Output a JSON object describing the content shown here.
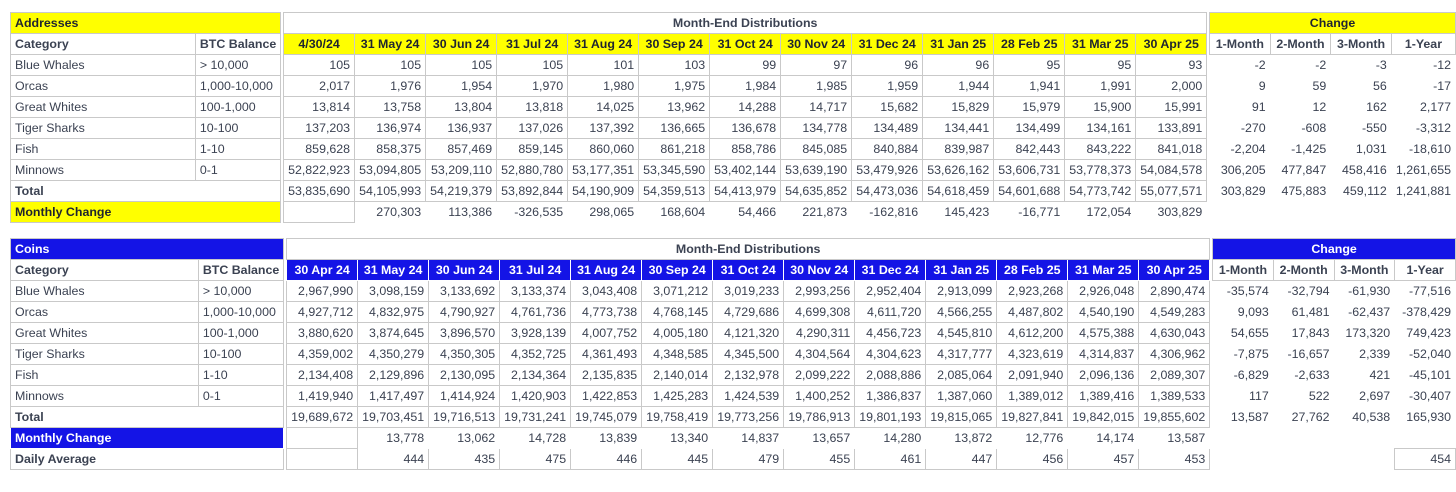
{
  "colors": {
    "yellow_accent": "#FFFF00",
    "blue_accent": "#1414E6",
    "positive_green": "#2BA62E",
    "negative_red": "#CE2B24",
    "header_gray": "#D9D9D9",
    "text_dark": "#3B4252"
  },
  "chart_data": [
    {
      "type": "table",
      "title": "Addresses",
      "accent": "#FFFF00",
      "banner": "Month-End Distributions",
      "change_title": "Change",
      "category_header": "Category",
      "balance_header": "BTC Balance",
      "months": [
        "4/30/24",
        "31 May 24",
        "30 Jun 24",
        "31 Jul 24",
        "31 Aug 24",
        "30 Sep 24",
        "31 Oct 24",
        "30 Nov 24",
        "31 Dec 24",
        "31 Jan 25",
        "28 Feb 25",
        "31 Mar 25",
        "30 Apr 25"
      ],
      "change_headers": [
        "1-Month",
        "2-Month",
        "3-Month",
        "1-Year"
      ],
      "rows": [
        {
          "category": "Blue Whales",
          "balance": "> 10,000",
          "values": [
            "105",
            "105",
            "105",
            "105",
            "101",
            "103",
            "99",
            "97",
            "96",
            "96",
            "95",
            "95",
            "93"
          ],
          "changes": [
            "-2",
            "-2",
            "-3",
            "-12"
          ]
        },
        {
          "category": "Orcas",
          "balance": "1,000-10,000",
          "values": [
            "2,017",
            "1,976",
            "1,954",
            "1,970",
            "1,980",
            "1,975",
            "1,984",
            "1,985",
            "1,959",
            "1,944",
            "1,941",
            "1,991",
            "2,000"
          ],
          "changes": [
            "9",
            "59",
            "56",
            "-17"
          ]
        },
        {
          "category": "Great Whites",
          "balance": "100-1,000",
          "values": [
            "13,814",
            "13,758",
            "13,804",
            "13,818",
            "14,025",
            "13,962",
            "14,288",
            "14,717",
            "15,682",
            "15,829",
            "15,979",
            "15,900",
            "15,991"
          ],
          "changes": [
            "91",
            "12",
            "162",
            "2,177"
          ]
        },
        {
          "category": "Tiger Sharks",
          "balance": "10-100",
          "values": [
            "137,203",
            "136,974",
            "136,937",
            "137,026",
            "137,392",
            "136,665",
            "136,678",
            "134,778",
            "134,489",
            "134,441",
            "134,499",
            "134,161",
            "133,891"
          ],
          "changes": [
            "-270",
            "-608",
            "-550",
            "-3,312"
          ]
        },
        {
          "category": "Fish",
          "balance": "1-10",
          "values": [
            "859,628",
            "858,375",
            "857,469",
            "859,145",
            "860,060",
            "861,218",
            "858,786",
            "845,085",
            "840,884",
            "839,987",
            "842,443",
            "843,222",
            "841,018"
          ],
          "changes": [
            "-2,204",
            "-1,425",
            "1,031",
            "-18,610"
          ]
        },
        {
          "category": "Minnows",
          "balance": "0-1",
          "values": [
            "52,822,923",
            "53,094,805",
            "53,209,110",
            "52,880,780",
            "53,177,351",
            "53,345,590",
            "53,402,144",
            "53,639,190",
            "53,479,926",
            "53,626,162",
            "53,606,731",
            "53,778,373",
            "54,084,578"
          ],
          "changes": [
            "306,205",
            "477,847",
            "458,416",
            "1,261,655"
          ]
        }
      ],
      "total": {
        "label": "Total",
        "values": [
          "53,835,690",
          "54,105,993",
          "54,219,379",
          "53,892,844",
          "54,190,909",
          "54,359,513",
          "54,413,979",
          "54,635,852",
          "54,473,036",
          "54,618,459",
          "54,601,688",
          "54,773,742",
          "55,077,571"
        ],
        "changes": [
          "303,829",
          "475,883",
          "459,112",
          "1,241,881"
        ]
      },
      "total_change_style": "sign",
      "monthly_change": {
        "label": "Monthly Change",
        "values": [
          "",
          "270,303",
          "113,386",
          "-326,535",
          "298,065",
          "168,604",
          "54,466",
          "221,873",
          "-162,816",
          "145,423",
          "-16,771",
          "172,054",
          "303,829"
        ]
      },
      "monthly_change_style": "sign"
    },
    {
      "type": "table",
      "title": "Coins",
      "accent": "#1414E6",
      "banner": "Month-End Distributions",
      "change_title": "Change",
      "category_header": "Category",
      "balance_header": "BTC Balance",
      "months": [
        "30 Apr 24",
        "31 May 24",
        "30 Jun 24",
        "31 Jul 24",
        "31 Aug 24",
        "30 Sep 24",
        "31 Oct 24",
        "30 Nov 24",
        "31 Dec 24",
        "31 Jan 25",
        "28 Feb 25",
        "31 Mar 25",
        "30 Apr 25"
      ],
      "change_headers": [
        "1-Month",
        "2-Month",
        "3-Month",
        "1-Year"
      ],
      "rows": [
        {
          "category": "Blue Whales",
          "balance": "> 10,000",
          "values": [
            "2,967,990",
            "3,098,159",
            "3,133,692",
            "3,133,374",
            "3,043,408",
            "3,071,212",
            "3,019,233",
            "2,993,256",
            "2,952,404",
            "2,913,099",
            "2,923,268",
            "2,926,048",
            "2,890,474"
          ],
          "changes": [
            "-35,574",
            "-32,794",
            "-61,930",
            "-77,516"
          ]
        },
        {
          "category": "Orcas",
          "balance": "1,000-10,000",
          "values": [
            "4,927,712",
            "4,832,975",
            "4,790,927",
            "4,761,736",
            "4,773,738",
            "4,768,145",
            "4,729,686",
            "4,699,308",
            "4,611,720",
            "4,566,255",
            "4,487,802",
            "4,540,190",
            "4,549,283"
          ],
          "changes": [
            "9,093",
            "61,481",
            "-62,437",
            "-378,429"
          ]
        },
        {
          "category": "Great Whites",
          "balance": "100-1,000",
          "values": [
            "3,880,620",
            "3,874,645",
            "3,896,570",
            "3,928,139",
            "4,007,752",
            "4,005,180",
            "4,121,320",
            "4,290,311",
            "4,456,723",
            "4,545,810",
            "4,612,200",
            "4,575,388",
            "4,630,043"
          ],
          "changes": [
            "54,655",
            "17,843",
            "173,320",
            "749,423"
          ]
        },
        {
          "category": "Tiger Sharks",
          "balance": "10-100",
          "values": [
            "4,359,002",
            "4,350,279",
            "4,350,305",
            "4,352,725",
            "4,361,493",
            "4,348,585",
            "4,345,500",
            "4,304,564",
            "4,304,623",
            "4,317,777",
            "4,323,619",
            "4,314,837",
            "4,306,962"
          ],
          "changes": [
            "-7,875",
            "-16,657",
            "2,339",
            "-52,040"
          ]
        },
        {
          "category": "Fish",
          "balance": "1-10",
          "values": [
            "2,134,408",
            "2,129,896",
            "2,130,095",
            "2,134,364",
            "2,135,835",
            "2,140,014",
            "2,132,978",
            "2,099,222",
            "2,088,886",
            "2,085,064",
            "2,091,940",
            "2,096,136",
            "2,089,307"
          ],
          "changes": [
            "-6,829",
            "-2,633",
            "421",
            "-45,101"
          ]
        },
        {
          "category": "Minnows",
          "balance": "0-1",
          "values": [
            "1,419,940",
            "1,417,497",
            "1,414,924",
            "1,420,903",
            "1,422,853",
            "1,425,283",
            "1,424,539",
            "1,400,252",
            "1,386,837",
            "1,387,060",
            "1,389,012",
            "1,389,416",
            "1,389,533"
          ],
          "changes": [
            "117",
            "522",
            "2,697",
            "-30,407"
          ]
        }
      ],
      "total": {
        "label": "Total",
        "values": [
          "19,689,672",
          "19,703,451",
          "19,716,513",
          "19,731,241",
          "19,745,079",
          "19,758,419",
          "19,773,256",
          "19,786,913",
          "19,801,193",
          "19,815,065",
          "19,827,841",
          "19,842,015",
          "19,855,602"
        ],
        "changes": [
          "13,587",
          "27,762",
          "40,538",
          "165,930"
        ]
      },
      "total_change_style": "blue",
      "monthly_change": {
        "label": "Monthly Change",
        "values": [
          "",
          "13,778",
          "13,062",
          "14,728",
          "13,839",
          "13,340",
          "14,837",
          "13,657",
          "14,280",
          "13,872",
          "12,776",
          "14,174",
          "13,587"
        ]
      },
      "monthly_change_style": "blue",
      "daily_average": {
        "label": "Daily Average",
        "values": [
          "",
          "444",
          "435",
          "475",
          "446",
          "445",
          "479",
          "455",
          "461",
          "447",
          "456",
          "457",
          "453"
        ],
        "year_change": "454"
      }
    }
  ]
}
